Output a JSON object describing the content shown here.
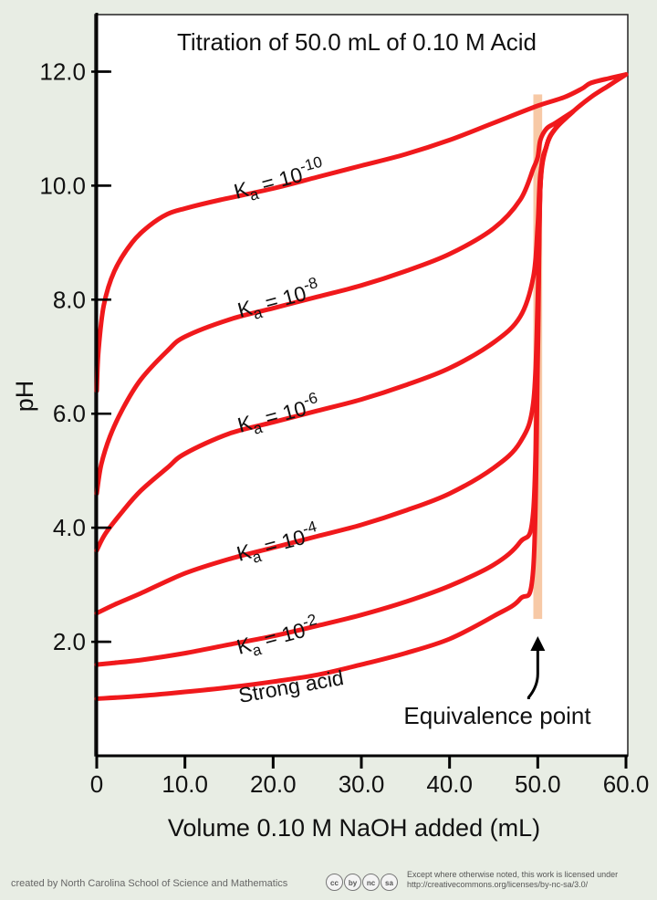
{
  "chart_data": {
    "type": "line",
    "title": "Titration of 50.0 mL of 0.10 M Acid",
    "xlabel": "Volume 0.10 M NaOH added (mL)",
    "ylabel": "pH",
    "xlim": [
      0,
      60
    ],
    "ylim": [
      0,
      13
    ],
    "x_ticks": [
      "0",
      "10.0",
      "20.0",
      "30.0",
      "40.0",
      "50.0",
      "60.0"
    ],
    "y_ticks": [
      "2.0",
      "4.0",
      "6.0",
      "8.0",
      "10.0",
      "12.0"
    ],
    "grid": false,
    "series": [
      {
        "name": "Strong acid",
        "x": [
          0,
          5,
          10,
          15,
          20,
          25,
          30,
          35,
          40,
          45,
          48,
          49.5,
          50,
          50.3,
          51,
          52,
          54,
          56,
          58,
          60
        ],
        "y": [
          1.0,
          1.05,
          1.12,
          1.2,
          1.3,
          1.42,
          1.6,
          1.8,
          2.05,
          2.45,
          2.75,
          3.3,
          7.0,
          10.0,
          10.7,
          11.0,
          11.3,
          11.55,
          11.75,
          11.95
        ]
      },
      {
        "name": "Ka = 10-2",
        "x": [
          0,
          2,
          5,
          10,
          15,
          20,
          25,
          30,
          35,
          40,
          45,
          48,
          49.5,
          50,
          50.3,
          51,
          52,
          54
        ],
        "y": [
          1.6,
          1.63,
          1.68,
          1.8,
          1.95,
          2.1,
          2.28,
          2.47,
          2.7,
          2.98,
          3.35,
          3.75,
          4.3,
          7.5,
          10.0,
          10.7,
          11.0,
          11.3
        ]
      },
      {
        "name": "Ka = 10-4",
        "x": [
          0,
          2,
          5,
          10,
          15,
          20,
          25,
          30,
          35,
          40,
          45,
          48,
          49.5,
          50,
          50.3,
          51,
          52,
          54
        ],
        "y": [
          2.5,
          2.65,
          2.85,
          3.2,
          3.45,
          3.65,
          3.85,
          4.05,
          4.3,
          4.6,
          5.05,
          5.5,
          6.2,
          8.0,
          10.0,
          10.7,
          11.0,
          11.3
        ]
      },
      {
        "name": "Ka = 10-6",
        "x": [
          0,
          1,
          3,
          5,
          8,
          10,
          15,
          20,
          25,
          30,
          35,
          40,
          45,
          48,
          49.5,
          50,
          50.3,
          51,
          52,
          54
        ],
        "y": [
          3.6,
          3.9,
          4.3,
          4.65,
          5.05,
          5.3,
          5.65,
          5.85,
          6.05,
          6.25,
          6.5,
          6.8,
          7.25,
          7.7,
          8.4,
          9.3,
          10.2,
          10.7,
          11.0,
          11.3
        ]
      },
      {
        "name": "Ka = 10-8",
        "x": [
          0,
          0.5,
          1.5,
          3,
          5,
          8,
          10,
          15,
          20,
          25,
          30,
          35,
          40,
          45,
          48,
          49.5,
          50,
          50.3,
          51,
          52,
          54
        ],
        "y": [
          4.6,
          5.1,
          5.6,
          6.1,
          6.6,
          7.1,
          7.35,
          7.65,
          7.85,
          8.05,
          8.25,
          8.5,
          8.8,
          9.25,
          9.75,
          10.3,
          10.5,
          10.8,
          11.0,
          11.1,
          11.3
        ]
      },
      {
        "name": "Ka = 10-10",
        "x": [
          0,
          0.2,
          0.8,
          2,
          4,
          6,
          8,
          10,
          14,
          20,
          25,
          30,
          35,
          40,
          45,
          50,
          53,
          55,
          56,
          58,
          60
        ],
        "y": [
          6.4,
          7.1,
          7.9,
          8.5,
          9.0,
          9.3,
          9.5,
          9.6,
          9.75,
          9.95,
          10.15,
          10.35,
          10.55,
          10.8,
          11.1,
          11.4,
          11.55,
          11.7,
          11.8,
          11.88,
          11.95
        ]
      }
    ],
    "series_labels": [
      {
        "base": "Strong acid",
        "sub": "",
        "exp": ""
      },
      {
        "base": "K",
        "sub": "a",
        "mid": " = 10",
        "exp": "-2"
      },
      {
        "base": "K",
        "sub": "a",
        "mid": " = 10",
        "exp": "-4"
      },
      {
        "base": "K",
        "sub": "a",
        "mid": " = 10",
        "exp": "-6"
      },
      {
        "base": "K",
        "sub": "a",
        "mid": " = 10",
        "exp": "-8"
      },
      {
        "base": "K",
        "sub": "a",
        "mid": " = 10",
        "exp": "-10"
      }
    ],
    "annotation": "Equivalence point",
    "equivalence_x": 50.0,
    "equivalence_range": [
      49.5,
      50.5
    ],
    "equivalence_y_range": [
      2.4,
      11.6
    ],
    "colors": {
      "curve": "#f0191c",
      "band": "#f7c9a6",
      "axis": "#000000",
      "plot_bg": "#ffffff",
      "page_bg": "#e8ede4"
    }
  },
  "footer": {
    "credit": "created by North Carolina School of Science and Mathematics",
    "cc_icons": [
      "cc",
      "by",
      "nc",
      "sa"
    ],
    "license_line1": "Except where otherwise noted, this work is licensed under",
    "license_line2": "http://creativecommons.org/licenses/by-nc-sa/3.0/"
  }
}
